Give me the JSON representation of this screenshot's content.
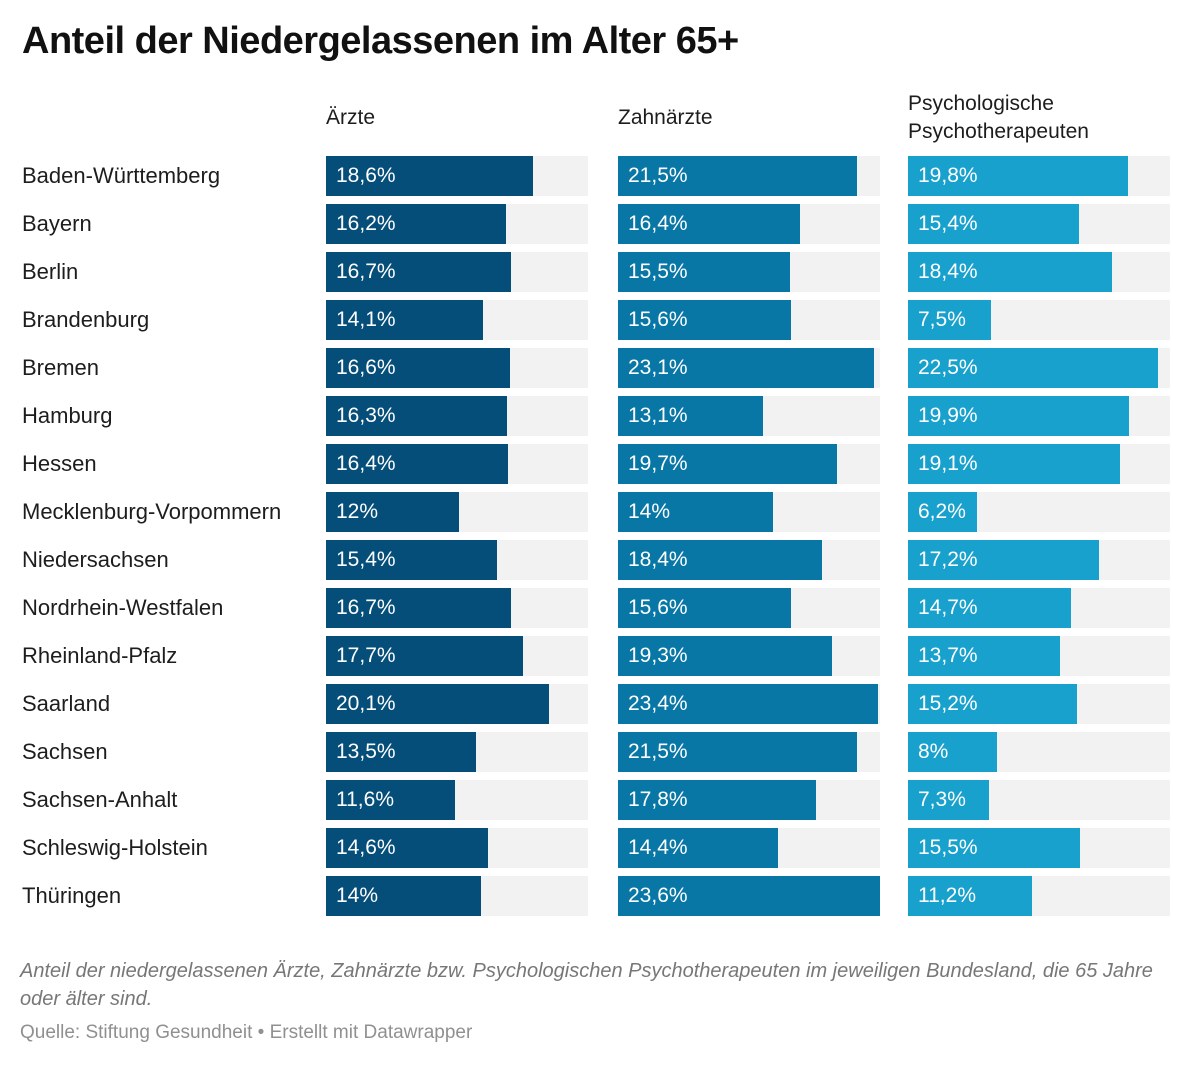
{
  "title": "Anteil der Niedergelassenen im Alter 65+",
  "note": "Anteil der niedergelassenen Ärzte, Zahnärzte bzw. Psychologischen Psychotherapeuten im jeweiligen Bundesland, die 65 Jahre oder älter sind.",
  "source": "Quelle: Stiftung Gesundheit • Erstellt mit Datawrapper",
  "chart_data": {
    "type": "bar",
    "orientation": "horizontal",
    "title": "Anteil der Niedergelassenen im Alter 65+",
    "xlim": [
      0,
      23.6
    ],
    "grid": false,
    "categories": [
      "Baden-Württemberg",
      "Bayern",
      "Berlin",
      "Brandenburg",
      "Bremen",
      "Hamburg",
      "Hessen",
      "Mecklenburg-Vorpommern",
      "Niedersachsen",
      "Nordrhein-Westfalen",
      "Rheinland-Pfalz",
      "Saarland",
      "Sachsen",
      "Sachsen-Anhalt",
      "Schleswig-Holstein",
      "Thüringen"
    ],
    "series": [
      {
        "name": "Ärzte",
        "color": "#054e7a",
        "values": [
          18.6,
          16.2,
          16.7,
          14.1,
          16.6,
          16.3,
          16.4,
          12,
          15.4,
          16.7,
          17.7,
          20.1,
          13.5,
          11.6,
          14.6,
          14
        ],
        "labels": [
          "18,6%",
          "16,2%",
          "16,7%",
          "14,1%",
          "16,6%",
          "16,3%",
          "16,4%",
          "12%",
          "15,4%",
          "16,7%",
          "17,7%",
          "20,1%",
          "13,5%",
          "11,6%",
          "14,6%",
          "14%"
        ]
      },
      {
        "name": "Zahnärzte",
        "color": "#0877a6",
        "values": [
          21.5,
          16.4,
          15.5,
          15.6,
          23.1,
          13.1,
          19.7,
          14,
          18.4,
          15.6,
          19.3,
          23.4,
          21.5,
          17.8,
          14.4,
          23.6
        ],
        "labels": [
          "21,5%",
          "16,4%",
          "15,5%",
          "15,6%",
          "23,1%",
          "13,1%",
          "19,7%",
          "14%",
          "18,4%",
          "15,6%",
          "19,3%",
          "23,4%",
          "21,5%",
          "17,8%",
          "14,4%",
          "23,6%"
        ]
      },
      {
        "name": "Psychologische Psychotherapeuten",
        "name_lines": [
          "Psychologische",
          "Psychotherapeuten"
        ],
        "color": "#18a1cd",
        "values": [
          19.8,
          15.4,
          18.4,
          7.5,
          22.5,
          19.9,
          19.1,
          6.2,
          17.2,
          14.7,
          13.7,
          15.2,
          8,
          7.3,
          15.5,
          11.2
        ],
        "labels": [
          "19,8%",
          "15,4%",
          "18,4%",
          "7,5%",
          "22,5%",
          "19,9%",
          "19,1%",
          "6,2%",
          "17,2%",
          "14,7%",
          "13,7%",
          "15,2%",
          "8%",
          "7,3%",
          "15,5%",
          "11,2%"
        ]
      }
    ]
  }
}
